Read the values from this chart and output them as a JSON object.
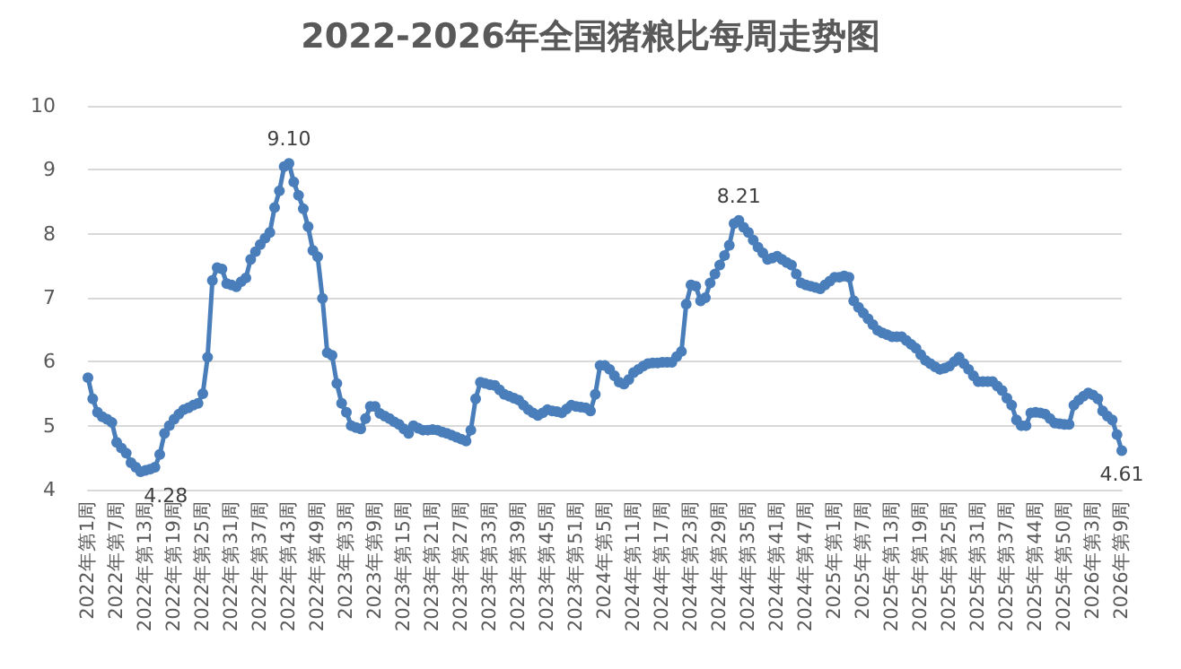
{
  "chart_data": {
    "type": "line",
    "title": "2022-2026年全国猪粮比每周走势图",
    "categories": [
      "2022年第1周",
      null,
      null,
      null,
      null,
      null,
      "2022年第7周",
      null,
      null,
      null,
      null,
      null,
      "2022年第13周",
      null,
      null,
      null,
      null,
      null,
      "2022年第19周",
      null,
      null,
      null,
      null,
      null,
      "2022年第25周",
      null,
      null,
      null,
      null,
      null,
      "2022年第31周",
      null,
      null,
      null,
      null,
      null,
      "2022年第37周",
      null,
      null,
      null,
      null,
      null,
      "2022年第43周",
      null,
      null,
      null,
      null,
      null,
      "2022年第49周",
      null,
      null,
      null,
      null,
      null,
      "2023年第3周",
      null,
      null,
      null,
      null,
      null,
      "2023年第9周",
      null,
      null,
      null,
      null,
      null,
      "2023年第15周",
      null,
      null,
      null,
      null,
      null,
      "2023年第21周",
      null,
      null,
      null,
      null,
      null,
      "2023年第27周",
      null,
      null,
      null,
      null,
      null,
      "2023年第33周",
      null,
      null,
      null,
      null,
      null,
      "2023年第39周",
      null,
      null,
      null,
      null,
      null,
      "2023年第45周",
      null,
      null,
      null,
      null,
      null,
      "2023年第51周",
      null,
      null,
      null,
      null,
      null,
      "2024年第5周",
      null,
      null,
      null,
      null,
      null,
      "2024年第11周",
      null,
      null,
      null,
      null,
      null,
      "2024年第17周",
      null,
      null,
      null,
      null,
      null,
      "2024年第23周",
      null,
      null,
      null,
      null,
      null,
      "2024年第29周",
      null,
      null,
      null,
      null,
      null,
      "2024年第35周",
      null,
      null,
      null,
      null,
      null,
      "2024年第41周",
      null,
      null,
      null,
      null,
      null,
      "2024年第47周",
      null,
      null,
      null,
      null,
      null,
      "2025年第1周",
      null,
      null,
      null,
      null,
      null,
      "2025年第7周",
      null,
      null,
      null,
      null,
      null,
      "2025年第13周",
      null,
      null,
      null,
      null,
      null,
      "2025年第19周",
      null,
      null,
      null,
      null,
      null,
      "2025年第25周",
      null,
      null,
      null,
      null,
      null,
      "2025年第31周",
      null,
      null,
      null,
      null,
      null,
      "2025年第37周",
      null,
      null,
      null,
      null,
      null,
      "2025年第44周",
      null,
      null,
      null,
      null,
      null,
      "2025年第50周",
      null,
      null,
      null,
      null,
      null,
      "2026年第3周",
      null,
      null,
      null,
      null,
      null,
      "2026年第9周"
    ],
    "series": [
      {
        "color": "#4a7ebb",
        "values": [
          5.75,
          5.42,
          5.21,
          5.14,
          5.1,
          5.05,
          4.74,
          4.65,
          4.57,
          4.42,
          4.35,
          4.28,
          4.3,
          4.32,
          4.35,
          4.55,
          4.88,
          5.0,
          5.1,
          5.18,
          5.25,
          5.28,
          5.32,
          5.35,
          5.5,
          6.07,
          7.27,
          7.47,
          7.45,
          7.22,
          7.2,
          7.17,
          7.25,
          7.31,
          7.6,
          7.72,
          7.83,
          7.93,
          8.02,
          8.41,
          8.67,
          9.05,
          9.1,
          8.81,
          8.6,
          8.39,
          8.11,
          7.74,
          7.64,
          6.99,
          6.14,
          6.1,
          5.66,
          5.35,
          5.21,
          5.0,
          4.97,
          4.95,
          5.11,
          5.3,
          5.3,
          5.19,
          5.15,
          5.11,
          5.06,
          5.02,
          4.95,
          4.88,
          5.0,
          4.96,
          4.93,
          4.93,
          4.94,
          4.93,
          4.9,
          4.88,
          4.85,
          4.82,
          4.79,
          4.76,
          4.93,
          5.42,
          5.68,
          5.66,
          5.64,
          5.63,
          5.56,
          5.49,
          5.46,
          5.43,
          5.4,
          5.32,
          5.25,
          5.2,
          5.16,
          5.2,
          5.25,
          5.23,
          5.22,
          5.2,
          5.26,
          5.32,
          5.3,
          5.29,
          5.28,
          5.23,
          5.49,
          5.94,
          5.94,
          5.88,
          5.78,
          5.68,
          5.65,
          5.72,
          5.83,
          5.88,
          5.93,
          5.97,
          5.98,
          5.98,
          5.99,
          5.99,
          5.99,
          6.08,
          6.16,
          6.9,
          7.2,
          7.18,
          6.95,
          7.0,
          7.23,
          7.37,
          7.51,
          7.66,
          7.82,
          8.16,
          8.21,
          8.1,
          8.02,
          7.9,
          7.79,
          7.7,
          7.6,
          7.62,
          7.65,
          7.6,
          7.55,
          7.51,
          7.37,
          7.23,
          7.2,
          7.18,
          7.16,
          7.14,
          7.2,
          7.26,
          7.32,
          7.32,
          7.34,
          7.32,
          6.95,
          6.85,
          6.76,
          6.67,
          6.58,
          6.49,
          6.45,
          6.42,
          6.39,
          6.39,
          6.39,
          6.33,
          6.27,
          6.21,
          6.11,
          6.02,
          5.97,
          5.92,
          5.88,
          5.9,
          5.93,
          6.0,
          6.07,
          5.97,
          5.88,
          5.78,
          5.69,
          5.69,
          5.69,
          5.69,
          5.62,
          5.55,
          5.43,
          5.32,
          5.09,
          5.0,
          5.0,
          5.2,
          5.21,
          5.2,
          5.18,
          5.11,
          5.04,
          5.03,
          5.02,
          5.02,
          5.32,
          5.4,
          5.46,
          5.51,
          5.48,
          5.42,
          5.23,
          5.15,
          5.09,
          4.86,
          4.61
        ],
        "value_labels": [
          null,
          null,
          null,
          null,
          null,
          null,
          null,
          null,
          null,
          null,
          null,
          "4.28",
          null,
          null,
          null,
          null,
          null,
          null,
          null,
          null,
          null,
          null,
          null,
          null,
          null,
          null,
          null,
          null,
          null,
          null,
          null,
          null,
          null,
          null,
          null,
          null,
          null,
          null,
          null,
          null,
          null,
          null,
          "9.10",
          null,
          null,
          null,
          null,
          null,
          null,
          null,
          null,
          null,
          null,
          null,
          null,
          null,
          null,
          null,
          null,
          null,
          null,
          null,
          null,
          null,
          null,
          null,
          null,
          null,
          null,
          null,
          null,
          null,
          null,
          null,
          null,
          null,
          null,
          null,
          null,
          null,
          null,
          null,
          null,
          null,
          null,
          null,
          null,
          null,
          null,
          null,
          null,
          null,
          null,
          null,
          null,
          null,
          null,
          null,
          null,
          null,
          null,
          null,
          null,
          null,
          null,
          null,
          null,
          null,
          null,
          null,
          null,
          null,
          null,
          null,
          null,
          null,
          null,
          null,
          null,
          null,
          null,
          null,
          null,
          null,
          null,
          null,
          null,
          null,
          null,
          null,
          null,
          null,
          null,
          null,
          null,
          null,
          "8.21",
          null,
          null,
          null,
          null,
          null,
          null,
          null,
          null,
          null,
          null,
          null,
          null,
          null,
          null,
          null,
          null,
          null,
          null,
          null,
          null,
          null,
          null,
          null,
          null,
          null,
          null,
          null,
          null,
          null,
          null,
          null,
          null,
          null,
          null,
          null,
          null,
          null,
          null,
          null,
          null,
          null,
          null,
          null,
          null,
          null,
          null,
          null,
          null,
          null,
          null,
          null,
          null,
          null,
          null,
          null,
          null,
          null,
          null,
          null,
          null,
          null,
          null,
          null,
          null,
          null,
          null,
          null,
          null,
          null,
          null,
          null,
          null,
          null,
          null,
          null,
          null,
          null,
          null,
          null,
          "4.61"
        ]
      }
    ],
    "ylim": [
      4,
      10
    ],
    "yticks": [
      4,
      5,
      6,
      7,
      8,
      9,
      10
    ],
    "grid": "y",
    "marker": "circle",
    "line_style": "solid"
  }
}
